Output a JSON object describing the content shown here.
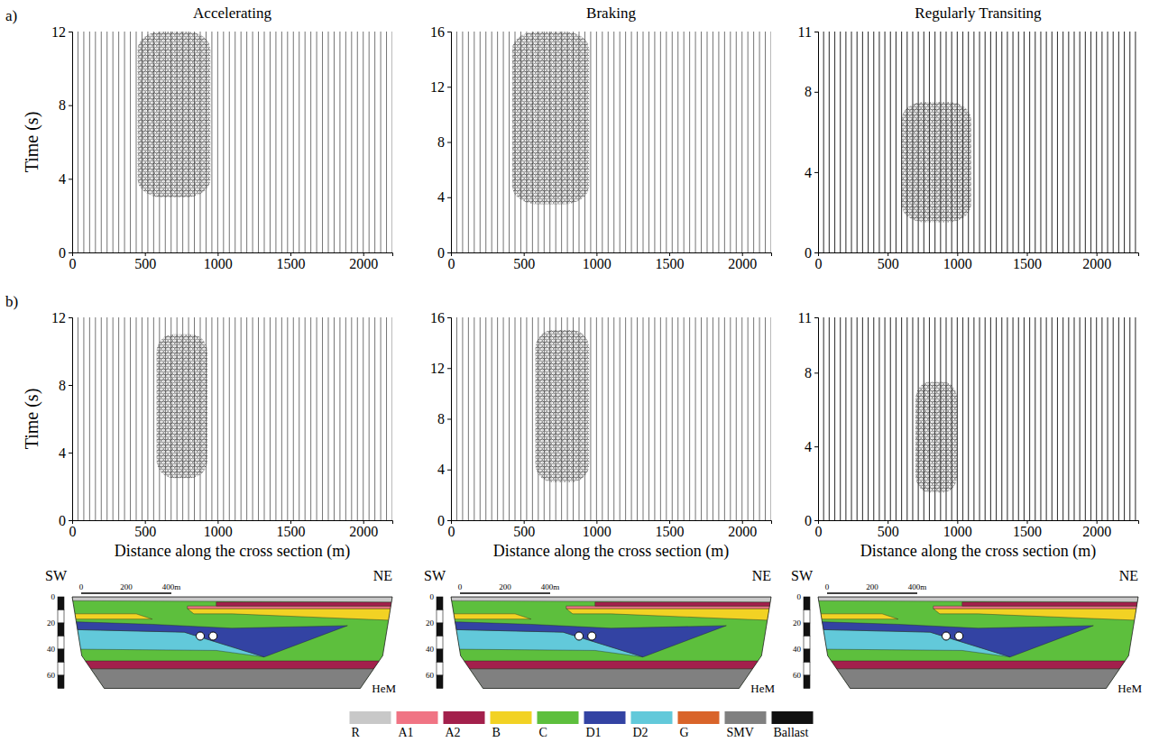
{
  "column_titles": [
    "Accelerating",
    "Braking",
    "Regularly Transiting"
  ],
  "row_labels": [
    "a)",
    "b)"
  ],
  "chart_data": [
    {
      "type": "wiggle",
      "ylabel": "Time (s)",
      "xlim": [
        0,
        2200
      ],
      "xticks": [
        0,
        500,
        1000,
        1500,
        2000
      ],
      "ylim": [
        0,
        12
      ],
      "yticks": [
        0,
        4,
        8,
        12
      ],
      "traces": [
        0,
        40,
        80,
        120,
        160,
        200,
        240,
        280,
        320,
        360,
        400,
        440,
        480,
        520,
        560,
        600,
        640,
        680,
        720,
        760,
        800,
        840,
        880,
        920,
        960,
        1000,
        1040,
        1080,
        1120,
        1160,
        1200,
        1240,
        1280,
        1320,
        1360,
        1400,
        1440,
        1480,
        1520,
        1560,
        1600,
        1640,
        1680,
        1720,
        1760,
        1800,
        1840,
        1880,
        1920,
        1960,
        2000,
        2040,
        2080,
        2120,
        2160,
        2200
      ],
      "event": {
        "x": [
          450,
          950
        ],
        "time": [
          3,
          12
        ]
      }
    },
    {
      "type": "wiggle",
      "xlim": [
        0,
        2200
      ],
      "xticks": [
        0,
        500,
        1000,
        1500,
        2000
      ],
      "ylim": [
        0,
        16
      ],
      "yticks": [
        0,
        4,
        8,
        12,
        16
      ],
      "traces": [
        0,
        40,
        80,
        120,
        160,
        200,
        240,
        280,
        320,
        360,
        400,
        440,
        480,
        520,
        560,
        600,
        640,
        680,
        720,
        760,
        800,
        840,
        880,
        920,
        960,
        1000,
        1040,
        1080,
        1120,
        1160,
        1200,
        1240,
        1280,
        1320,
        1360,
        1400,
        1440,
        1480,
        1520,
        1560,
        1600,
        1640,
        1680,
        1720,
        1760,
        1800,
        1840,
        1880,
        1920,
        1960,
        2000,
        2040,
        2080,
        2120,
        2160,
        2200
      ],
      "event": {
        "x": [
          420,
          950
        ],
        "time": [
          3.5,
          16
        ]
      }
    },
    {
      "type": "wiggle",
      "xlim": [
        0,
        2300
      ],
      "xticks": [
        0,
        500,
        1000,
        1500,
        2000
      ],
      "ylim": [
        0,
        11
      ],
      "yticks": [
        0,
        4,
        8,
        11
      ],
      "traces": [
        0,
        40,
        80,
        120,
        160,
        200,
        240,
        280,
        320,
        360,
        400,
        440,
        480,
        520,
        560,
        600,
        640,
        680,
        720,
        760,
        800,
        840,
        880,
        920,
        960,
        1000,
        1040,
        1080,
        1120,
        1160,
        1200,
        1240,
        1280,
        1320,
        1360,
        1400,
        1440,
        1480,
        1520,
        1560,
        1600,
        1640,
        1680,
        1720,
        1760,
        1800,
        1840,
        1880,
        1920,
        1960,
        2000,
        2040,
        2080,
        2120,
        2160,
        2200,
        2240,
        2280
      ],
      "event": {
        "x": [
          600,
          1100
        ],
        "time": [
          1.5,
          7.5
        ]
      }
    },
    {
      "type": "wiggle",
      "ylabel": "Time (s)",
      "xlabel": "Distance along the cross section (m)",
      "xlim": [
        0,
        2200
      ],
      "xticks": [
        0,
        500,
        1000,
        1500,
        2000
      ],
      "ylim": [
        0,
        12
      ],
      "yticks": [
        0,
        4,
        8,
        12
      ],
      "traces": [
        0,
        40,
        80,
        120,
        160,
        200,
        240,
        280,
        320,
        360,
        400,
        440,
        480,
        520,
        560,
        600,
        640,
        680,
        720,
        760,
        800,
        840,
        880,
        920,
        960,
        1000,
        1040,
        1080,
        1120,
        1160,
        1200,
        1240,
        1280,
        1320,
        1360,
        1400,
        1440,
        1480,
        1520,
        1560,
        1600,
        1640,
        1680,
        1720,
        1760,
        1800,
        1840,
        1880,
        1920,
        1960,
        2000,
        2040,
        2080,
        2120,
        2160,
        2200
      ],
      "event": {
        "x": [
          580,
          930
        ],
        "time": [
          2.5,
          11
        ]
      }
    },
    {
      "type": "wiggle",
      "xlabel": "Distance along the cross section (m)",
      "xlim": [
        0,
        2200
      ],
      "xticks": [
        0,
        500,
        1000,
        1500,
        2000
      ],
      "ylim": [
        0,
        16
      ],
      "yticks": [
        0,
        4,
        8,
        12,
        16
      ],
      "traces": [
        0,
        40,
        80,
        120,
        160,
        200,
        240,
        280,
        320,
        360,
        400,
        440,
        480,
        520,
        560,
        600,
        640,
        680,
        720,
        760,
        800,
        840,
        880,
        920,
        960,
        1000,
        1040,
        1080,
        1120,
        1160,
        1200,
        1240,
        1280,
        1320,
        1360,
        1400,
        1440,
        1480,
        1520,
        1560,
        1600,
        1640,
        1680,
        1720,
        1760,
        1800,
        1840,
        1880,
        1920,
        1960,
        2000,
        2040,
        2080,
        2120,
        2160,
        2200
      ],
      "event": {
        "x": [
          580,
          950
        ],
        "time": [
          3,
          15
        ]
      }
    },
    {
      "type": "wiggle",
      "xlabel": "Distance along the cross section (m)",
      "xlim": [
        0,
        2300
      ],
      "xticks": [
        0,
        500,
        1000,
        1500,
        2000
      ],
      "ylim": [
        0,
        11
      ],
      "yticks": [
        0,
        4,
        8,
        11
      ],
      "traces": [
        0,
        40,
        80,
        120,
        160,
        200,
        240,
        280,
        320,
        360,
        400,
        440,
        480,
        520,
        560,
        600,
        640,
        680,
        720,
        760,
        800,
        840,
        880,
        920,
        960,
        1000,
        1040,
        1080,
        1120,
        1160,
        1200,
        1240,
        1280,
        1320,
        1360,
        1400,
        1440,
        1480,
        1520,
        1560,
        1600,
        1640,
        1680,
        1720,
        1760,
        1800,
        1840,
        1880,
        1920,
        1960,
        2000,
        2040,
        2080,
        2120,
        2160,
        2200,
        2240,
        2280
      ],
      "event": {
        "x": [
          700,
          1000
        ],
        "time": [
          1.5,
          7.5
        ]
      }
    }
  ],
  "cross_section": {
    "directions": [
      "SW",
      "NE"
    ],
    "unit_label": "HeM",
    "scale_bar_labels": [
      "0",
      "200",
      "400m"
    ],
    "depth_ticks": [
      0,
      20,
      40,
      60
    ],
    "legend": [
      {
        "name": "R",
        "color": "#c8c8c8"
      },
      {
        "name": "A1",
        "color": "#f07484"
      },
      {
        "name": "A2",
        "color": "#a3204c"
      },
      {
        "name": "B",
        "color": "#f2d224"
      },
      {
        "name": "C",
        "color": "#5dbf3d"
      },
      {
        "name": "D1",
        "color": "#3343a3"
      },
      {
        "name": "D2",
        "color": "#62c9da"
      },
      {
        "name": "G",
        "color": "#d9642a"
      },
      {
        "name": "SMV",
        "color": "#808080"
      },
      {
        "name": "Ballast",
        "color": "#111111"
      }
    ]
  }
}
